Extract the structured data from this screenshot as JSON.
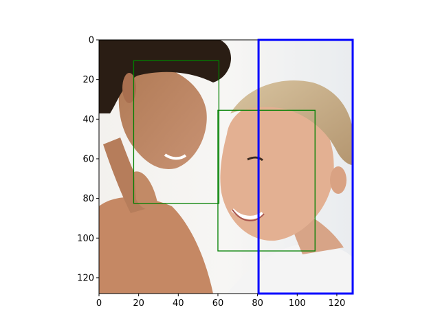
{
  "colors": {
    "box_green": "#008000",
    "box_blue": "#0000ff",
    "axis": "#000000",
    "background": "#ffffff"
  },
  "chart_data": {
    "type": "image_with_boxes",
    "image_shape": [
      128,
      128
    ],
    "image_content": "photo of a smiling man (left) and woman (right) facing each other",
    "x_ticks": [
      0,
      20,
      40,
      60,
      80,
      100,
      120
    ],
    "y_ticks": [
      0,
      20,
      40,
      60,
      80,
      100,
      120
    ],
    "xlim": [
      0,
      128
    ],
    "ylim": [
      128,
      0
    ],
    "boxes": [
      {
        "x0": 17.5,
        "y0": 10.5,
        "x1": 60.5,
        "y1": 82.5,
        "color": "#008000"
      },
      {
        "x0": 60,
        "y0": 35.5,
        "x1": 109,
        "y1": 106.5,
        "color": "#008000"
      },
      {
        "x0": 80.5,
        "y0": 0,
        "x1": 128,
        "y1": 128,
        "color": "#0000ff"
      }
    ]
  }
}
